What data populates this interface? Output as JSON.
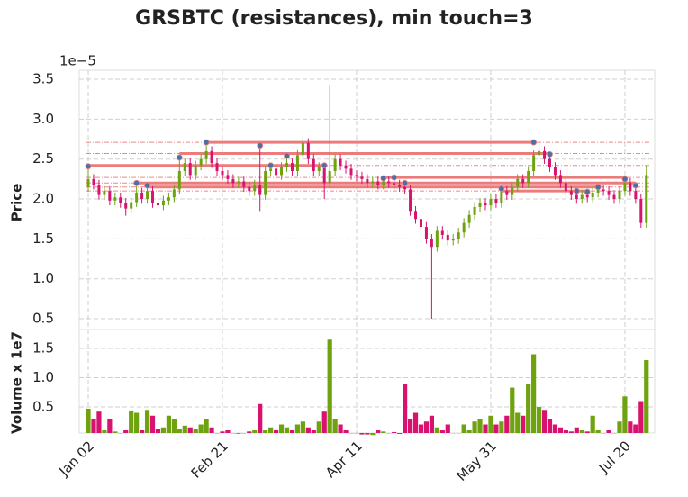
{
  "chart_data": {
    "type": "candlestick",
    "title": "GRSBTC (resistances), min touch=3",
    "y_offset_label": "1e−5",
    "ylabel": "Price",
    "volume_ylabel": "Volume x 1e7",
    "up_color": "#6ea20f",
    "down_color": "#d8126e",
    "resistance_color": "#ec7c7c",
    "touch_color": "#4c6fa8",
    "grid": true,
    "xlim": [
      -3.36,
      211.1
    ],
    "xticks": [
      {
        "value": 0,
        "label": "Jan 02"
      },
      {
        "value": 50,
        "label": "Feb 21"
      },
      {
        "value": 100,
        "label": "Apr 11"
      },
      {
        "value": 150,
        "label": "May 31"
      },
      {
        "value": 200,
        "label": "Jul 20"
      }
    ],
    "ylim": [
      0.365,
      3.613
    ],
    "yticks": [
      0.5,
      {
        "value": 1.0,
        "label": "1.0"
      },
      1.5,
      {
        "value": 2.0,
        "label": "2.0"
      },
      2.5,
      {
        "value": 3.0,
        "label": "3.0"
      },
      3.5
    ],
    "volume_ylim": [
      0.054,
      1.823
    ],
    "volume_yticks": [
      0.5,
      {
        "value": 1.0,
        "label": "1.0"
      },
      1.5
    ],
    "x": [
      0,
      2,
      4,
      6,
      8,
      10,
      12,
      14,
      16,
      18,
      20,
      22,
      24,
      26,
      28,
      30,
      32,
      34,
      36,
      38,
      40,
      42,
      44,
      46,
      48,
      50,
      52,
      54,
      56,
      58,
      60,
      62,
      64,
      66,
      68,
      70,
      72,
      74,
      76,
      78,
      80,
      82,
      84,
      86,
      88,
      90,
      92,
      94,
      96,
      98,
      100,
      102,
      104,
      106,
      108,
      110,
      112,
      114,
      116,
      118,
      120,
      122,
      124,
      126,
      128,
      130,
      132,
      134,
      136,
      138,
      140,
      142,
      144,
      146,
      148,
      150,
      152,
      154,
      156,
      158,
      160,
      162,
      164,
      166,
      168,
      170,
      172,
      174,
      176,
      178,
      180,
      182,
      184,
      186,
      188,
      190,
      192,
      194,
      196,
      198,
      200,
      202,
      204,
      206,
      208
    ],
    "open": [
      2.15,
      2.25,
      2.18,
      2.05,
      2.1,
      1.98,
      2.02,
      1.95,
      1.88,
      1.96,
      2.08,
      2.0,
      2.1,
      1.95,
      1.92,
      1.98,
      2.02,
      2.12,
      2.35,
      2.45,
      2.3,
      2.42,
      2.5,
      2.6,
      2.45,
      2.35,
      2.3,
      2.25,
      2.2,
      2.22,
      2.15,
      2.1,
      2.18,
      2.05,
      2.35,
      2.38,
      2.3,
      2.4,
      2.45,
      2.35,
      2.55,
      2.7,
      2.5,
      2.35,
      2.4,
      2.2,
      2.35,
      2.5,
      2.42,
      2.38,
      2.3,
      2.28,
      2.25,
      2.2,
      2.22,
      2.18,
      2.22,
      2.2,
      2.18,
      2.15,
      2.12,
      1.85,
      1.75,
      1.65,
      1.5,
      1.4,
      1.6,
      1.55,
      1.48,
      1.5,
      1.58,
      1.7,
      1.8,
      1.9,
      1.95,
      1.92,
      2.0,
      1.95,
      2.1,
      2.05,
      2.15,
      2.25,
      2.2,
      2.35,
      2.55,
      2.6,
      2.5,
      2.4,
      2.3,
      2.2,
      2.1,
      2.05,
      2.0,
      2.05,
      2.02,
      2.08,
      2.12,
      2.1,
      2.05,
      2.0,
      2.1,
      2.2,
      2.1,
      2.0,
      1.7
    ],
    "high": [
      2.41,
      2.31,
      2.24,
      2.16,
      2.16,
      2.08,
      2.08,
      2.01,
      2.02,
      2.2,
      2.14,
      2.17,
      2.16,
      2.01,
      2.04,
      2.08,
      2.18,
      2.52,
      2.51,
      2.51,
      2.48,
      2.56,
      2.71,
      2.66,
      2.51,
      2.41,
      2.36,
      2.31,
      2.28,
      2.28,
      2.21,
      2.24,
      2.67,
      2.41,
      2.42,
      2.44,
      2.46,
      2.54,
      2.51,
      2.61,
      2.8,
      2.76,
      2.56,
      2.46,
      2.42,
      3.43,
      2.56,
      2.56,
      2.48,
      2.44,
      2.36,
      2.34,
      2.31,
      2.28,
      2.28,
      2.26,
      2.28,
      2.27,
      2.24,
      2.2,
      2.18,
      1.91,
      1.81,
      1.71,
      1.56,
      1.66,
      1.66,
      1.61,
      1.56,
      1.64,
      1.76,
      1.86,
      1.96,
      2.01,
      2.01,
      2.06,
      2.06,
      2.13,
      2.16,
      2.21,
      2.31,
      2.31,
      2.41,
      2.61,
      2.71,
      2.66,
      2.56,
      2.46,
      2.36,
      2.26,
      2.16,
      2.1,
      2.11,
      2.09,
      2.14,
      2.15,
      2.18,
      2.16,
      2.11,
      2.16,
      2.26,
      2.26,
      2.17,
      2.06,
      2.42
    ],
    "low": [
      2.09,
      2.12,
      1.99,
      1.99,
      1.92,
      1.92,
      1.89,
      1.79,
      1.82,
      1.9,
      1.94,
      1.94,
      1.89,
      1.86,
      1.86,
      1.92,
      1.96,
      2.06,
      2.29,
      2.24,
      2.24,
      2.36,
      2.44,
      2.39,
      2.29,
      2.24,
      2.19,
      2.14,
      2.14,
      2.09,
      2.04,
      2.04,
      1.85,
      1.99,
      2.29,
      2.24,
      2.24,
      2.34,
      2.29,
      2.29,
      2.49,
      2.44,
      2.29,
      2.29,
      2.0,
      2.14,
      2.29,
      2.36,
      2.32,
      2.24,
      2.22,
      2.19,
      2.14,
      2.14,
      2.12,
      2.12,
      2.14,
      2.12,
      2.09,
      2.06,
      1.79,
      1.69,
      1.59,
      1.44,
      0.5,
      1.34,
      1.49,
      1.42,
      1.42,
      1.44,
      1.52,
      1.64,
      1.74,
      1.84,
      1.86,
      1.86,
      1.89,
      1.89,
      1.99,
      1.99,
      2.09,
      2.14,
      2.14,
      2.29,
      2.49,
      2.44,
      2.34,
      2.24,
      2.14,
      2.04,
      1.99,
      1.94,
      1.94,
      1.96,
      1.96,
      2.02,
      2.04,
      1.99,
      1.94,
      1.94,
      2.04,
      2.04,
      1.94,
      1.64,
      1.64
    ],
    "close": [
      2.25,
      2.18,
      2.05,
      2.1,
      1.98,
      2.02,
      1.95,
      1.88,
      1.96,
      2.08,
      2.0,
      2.1,
      1.95,
      1.92,
      1.98,
      2.02,
      2.12,
      2.35,
      2.45,
      2.3,
      2.42,
      2.5,
      2.6,
      2.45,
      2.35,
      2.3,
      2.25,
      2.2,
      2.22,
      2.15,
      2.1,
      2.18,
      2.05,
      2.35,
      2.38,
      2.3,
      2.4,
      2.45,
      2.35,
      2.55,
      2.7,
      2.5,
      2.35,
      2.4,
      2.2,
      2.35,
      2.5,
      2.42,
      2.38,
      2.3,
      2.28,
      2.25,
      2.2,
      2.22,
      2.18,
      2.22,
      2.2,
      2.18,
      2.15,
      2.12,
      1.85,
      1.75,
      1.65,
      1.5,
      1.4,
      1.6,
      1.55,
      1.48,
      1.5,
      1.58,
      1.7,
      1.8,
      1.9,
      1.95,
      1.92,
      2.0,
      1.95,
      2.1,
      2.05,
      2.15,
      2.25,
      2.2,
      2.35,
      2.55,
      2.6,
      2.5,
      2.4,
      2.3,
      2.2,
      2.1,
      2.05,
      2.0,
      2.05,
      2.02,
      2.08,
      2.12,
      2.1,
      2.05,
      2.0,
      2.1,
      2.2,
      2.1,
      2.0,
      1.7,
      2.3
    ],
    "volume": [
      0.47,
      0.3,
      0.42,
      0.1,
      0.3,
      0.08,
      0.05,
      0.1,
      0.44,
      0.4,
      0.1,
      0.45,
      0.35,
      0.12,
      0.15,
      0.35,
      0.3,
      0.12,
      0.18,
      0.15,
      0.12,
      0.2,
      0.3,
      0.15,
      0.05,
      0.08,
      0.1,
      0.05,
      0.04,
      0.05,
      0.08,
      0.1,
      0.55,
      0.1,
      0.15,
      0.1,
      0.2,
      0.15,
      0.1,
      0.2,
      0.25,
      0.15,
      0.1,
      0.25,
      0.42,
      1.65,
      0.3,
      0.2,
      0.1,
      0.05,
      0.05,
      0.03,
      0.03,
      0.02,
      0.1,
      0.08,
      0.05,
      0.07,
      0.04,
      0.9,
      0.3,
      0.4,
      0.2,
      0.25,
      0.35,
      0.15,
      0.1,
      0.2,
      0.05,
      0.05,
      0.2,
      0.1,
      0.25,
      0.3,
      0.2,
      0.35,
      0.2,
      0.25,
      0.35,
      0.83,
      0.4,
      0.35,
      0.9,
      1.4,
      0.5,
      0.45,
      0.3,
      0.2,
      0.15,
      0.1,
      0.08,
      0.15,
      0.1,
      0.08,
      0.35,
      0.1,
      0.05,
      0.1,
      0.05,
      0.25,
      0.68,
      0.25,
      0.2,
      0.6,
      1.3
    ],
    "resistances": [
      {
        "level": 2.71,
        "touches": [
          [
            44,
            2.71
          ],
          [
            64,
            2.67
          ],
          [
            166,
            2.71
          ]
        ]
      },
      {
        "level": 2.57,
        "touches": [
          [
            34,
            2.52
          ],
          [
            74,
            2.54
          ],
          [
            172,
            2.56
          ]
        ]
      },
      {
        "level": 2.42,
        "touches": [
          [
            0,
            2.41
          ],
          [
            68,
            2.42
          ],
          [
            88,
            2.42
          ]
        ]
      },
      {
        "level": 2.27,
        "touches": [
          [
            110,
            2.26
          ],
          [
            114,
            2.27
          ],
          [
            200,
            2.25
          ]
        ]
      },
      {
        "level": 2.2,
        "touches": [
          [
            18,
            2.2
          ],
          [
            118,
            2.2
          ],
          [
            204,
            2.17
          ]
        ]
      },
      {
        "level": 2.15,
        "touches": [
          [
            22,
            2.17
          ],
          [
            154,
            2.13
          ],
          [
            190,
            2.15
          ]
        ]
      },
      {
        "level": 2.1,
        "touches": [
          [
            154,
            2.13
          ],
          [
            182,
            2.1
          ],
          [
            186,
            2.09
          ]
        ]
      }
    ]
  }
}
